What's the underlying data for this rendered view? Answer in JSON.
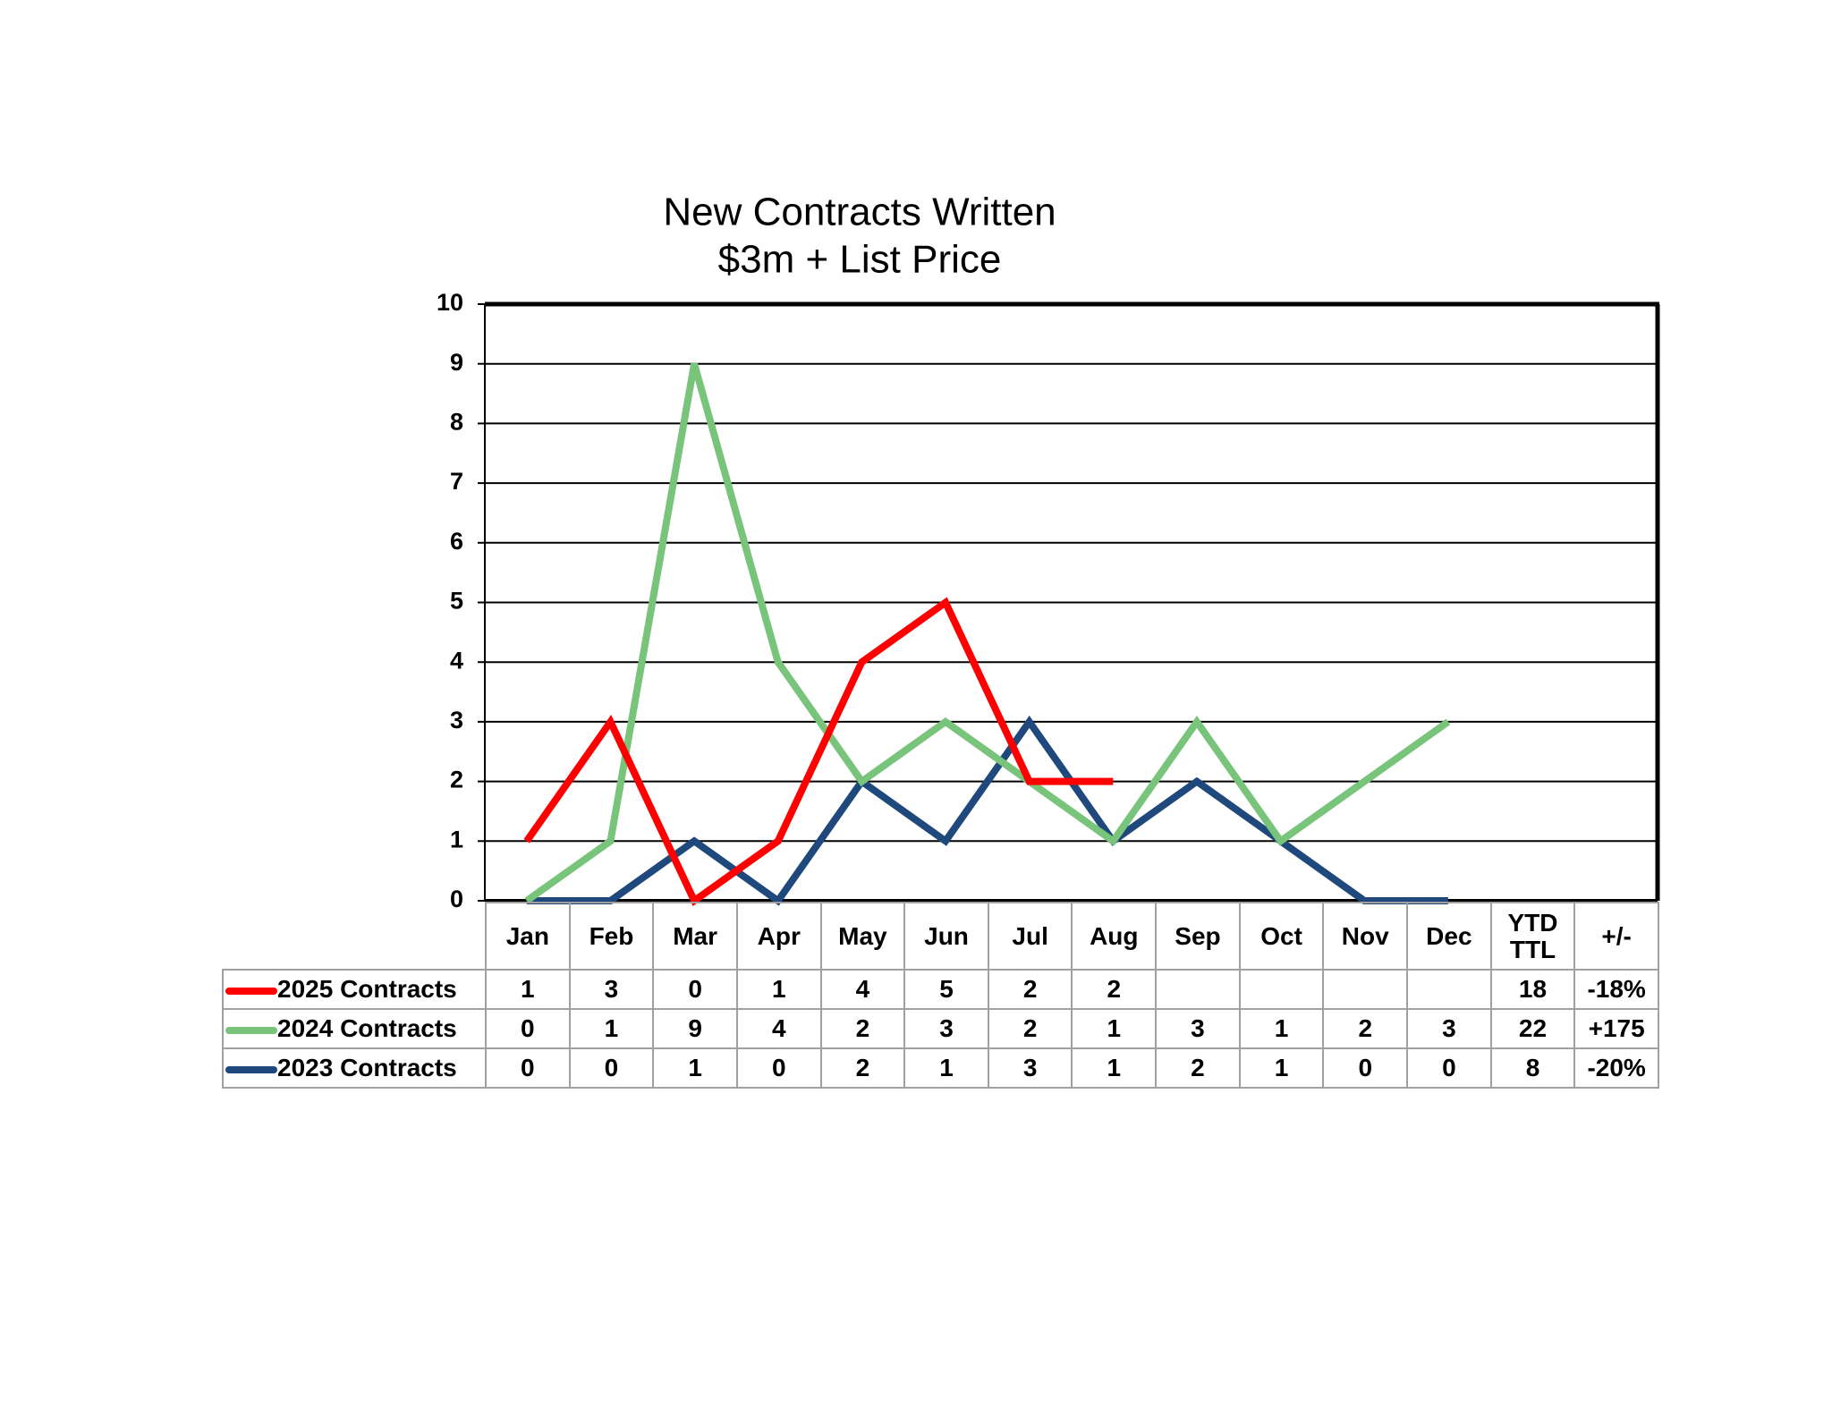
{
  "chart_data": {
    "type": "line",
    "title": "New Contracts Written",
    "subtitle": "$3m + List Price",
    "categories": [
      "Jan",
      "Feb",
      "Mar",
      "Apr",
      "May",
      "Jun",
      "Jul",
      "Aug",
      "Sep",
      "Oct",
      "Nov",
      "Dec"
    ],
    "extra_columns": [
      "YTD\nTTL",
      "+/-"
    ],
    "series": [
      {
        "name": "2025 Contracts",
        "color": "#ff0000",
        "values": [
          1,
          3,
          0,
          1,
          4,
          5,
          2,
          2,
          null,
          null,
          null,
          null
        ],
        "total": 18,
        "change": "-18%"
      },
      {
        "name": "2024 Contracts",
        "color": "#77c47a",
        "values": [
          0,
          1,
          9,
          4,
          2,
          3,
          2,
          1,
          3,
          1,
          2,
          3
        ],
        "total": 22,
        "change": "+175"
      },
      {
        "name": "2023 Contracts",
        "color": "#1f497d",
        "values": [
          0,
          0,
          1,
          0,
          2,
          1,
          3,
          1,
          2,
          1,
          0,
          0
        ],
        "total": 8,
        "change": "-20%"
      }
    ],
    "ylim": [
      0,
      10
    ],
    "yticks": [
      0,
      1,
      2,
      3,
      4,
      5,
      6,
      7,
      8,
      9,
      10
    ],
    "grid": true
  }
}
